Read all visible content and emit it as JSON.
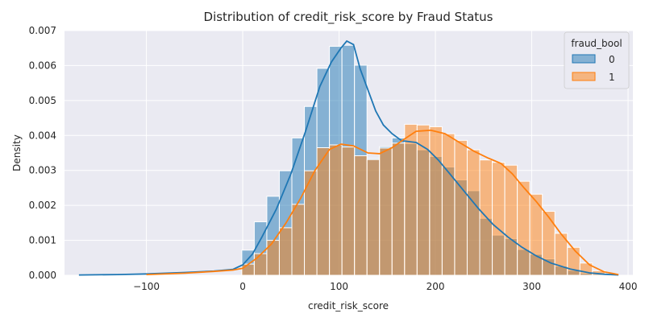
{
  "chart_data": {
    "type": "histogram",
    "title": "Distribution of credit_risk_score by Fraud Status",
    "xlabel": "credit_risk_score",
    "ylabel": "Density",
    "xlim": [
      -185,
      405
    ],
    "ylim": [
      0,
      0.007
    ],
    "xticks": [
      -100,
      0,
      100,
      200,
      300,
      400
    ],
    "xtick_labels": [
      "−100",
      "0",
      "100",
      "200",
      "300",
      "400"
    ],
    "yticks": [
      0,
      0.001,
      0.002,
      0.003,
      0.004,
      0.005,
      0.006,
      0.007
    ],
    "ytick_labels": [
      "0.000",
      "0.001",
      "0.002",
      "0.003",
      "0.004",
      "0.005",
      "0.006",
      "0.007"
    ],
    "grid": true,
    "background": "#eaeaf2",
    "legend": {
      "title": "fraud_bool",
      "placement": "top-right"
    },
    "bin_width": 13,
    "series": [
      {
        "name": "0",
        "color": "#1f77b4",
        "bins": [
          {
            "x0": -1,
            "y": 0.00072
          },
          {
            "x0": 12,
            "y": 0.00153
          },
          {
            "x0": 25,
            "y": 0.00226
          },
          {
            "x0": 38,
            "y": 0.00299
          },
          {
            "x0": 51,
            "y": 0.00393
          },
          {
            "x0": 64,
            "y": 0.00483
          },
          {
            "x0": 77,
            "y": 0.00592
          },
          {
            "x0": 90,
            "y": 0.00655
          },
          {
            "x0": 103,
            "y": 0.00658
          },
          {
            "x0": 116,
            "y": 0.00601
          },
          {
            "x0": 129,
            "y": 0.00334
          },
          {
            "x0": 142,
            "y": 0.00368
          },
          {
            "x0": 155,
            "y": 0.00393
          },
          {
            "x0": 168,
            "y": 0.00377
          },
          {
            "x0": 181,
            "y": 0.00359
          },
          {
            "x0": 194,
            "y": 0.0034
          },
          {
            "x0": 207,
            "y": 0.0031
          },
          {
            "x0": 220,
            "y": 0.00273
          },
          {
            "x0": 233,
            "y": 0.00242
          },
          {
            "x0": 246,
            "y": 0.00163
          },
          {
            "x0": 259,
            "y": 0.00115
          },
          {
            "x0": 272,
            "y": 0.00105
          },
          {
            "x0": 285,
            "y": 0.00074
          },
          {
            "x0": 298,
            "y": 0.0006
          },
          {
            "x0": 311,
            "y": 0.00047
          },
          {
            "x0": 324,
            "y": 0.00026
          },
          {
            "x0": 337,
            "y": 0.00014
          },
          {
            "x0": 350,
            "y": 6e-05
          },
          {
            "x0": 363,
            "y": 3e-05
          },
          {
            "x0": 376,
            "y": 1e-05
          }
        ],
        "kde": [
          [
            -170,
            1e-05
          ],
          [
            -130,
            2e-05
          ],
          [
            -100,
            4e-05
          ],
          [
            -60,
            8e-05
          ],
          [
            -30,
            0.00012
          ],
          [
            -10,
            0.00017
          ],
          [
            0,
            0.0003
          ],
          [
            10,
            0.0006
          ],
          [
            20,
            0.0011
          ],
          [
            35,
            0.0019
          ],
          [
            50,
            0.0029
          ],
          [
            65,
            0.0041
          ],
          [
            80,
            0.0054
          ],
          [
            92,
            0.0061
          ],
          [
            102,
            0.0065
          ],
          [
            108,
            0.0067
          ],
          [
            115,
            0.0066
          ],
          [
            122,
            0.0059
          ],
          [
            130,
            0.0053
          ],
          [
            138,
            0.0047
          ],
          [
            146,
            0.0043
          ],
          [
            155,
            0.00405
          ],
          [
            165,
            0.00385
          ],
          [
            180,
            0.0038
          ],
          [
            192,
            0.0036
          ],
          [
            203,
            0.0033
          ],
          [
            215,
            0.0029
          ],
          [
            230,
            0.0024
          ],
          [
            245,
            0.0019
          ],
          [
            260,
            0.00145
          ],
          [
            275,
            0.0011
          ],
          [
            290,
            0.0008
          ],
          [
            305,
            0.00055
          ],
          [
            320,
            0.00035
          ],
          [
            340,
            0.00018
          ],
          [
            360,
            7e-05
          ],
          [
            375,
            3e-05
          ],
          [
            390,
            1e-05
          ]
        ]
      },
      {
        "name": "1",
        "color": "#ff7f0e",
        "bins": [
          {
            "x0": -1,
            "y": 0.00032
          },
          {
            "x0": 12,
            "y": 0.00062
          },
          {
            "x0": 25,
            "y": 0.001
          },
          {
            "x0": 38,
            "y": 0.00136
          },
          {
            "x0": 51,
            "y": 0.00203
          },
          {
            "x0": 64,
            "y": 0.00299
          },
          {
            "x0": 77,
            "y": 0.00365
          },
          {
            "x0": 90,
            "y": 0.00373
          },
          {
            "x0": 103,
            "y": 0.00367
          },
          {
            "x0": 116,
            "y": 0.00342
          },
          {
            "x0": 129,
            "y": 0.00331
          },
          {
            "x0": 142,
            "y": 0.00364
          },
          {
            "x0": 155,
            "y": 0.00378
          },
          {
            "x0": 168,
            "y": 0.00432
          },
          {
            "x0": 181,
            "y": 0.0043
          },
          {
            "x0": 194,
            "y": 0.00425
          },
          {
            "x0": 207,
            "y": 0.00405
          },
          {
            "x0": 220,
            "y": 0.00386
          },
          {
            "x0": 233,
            "y": 0.00359
          },
          {
            "x0": 246,
            "y": 0.0033
          },
          {
            "x0": 259,
            "y": 0.00323
          },
          {
            "x0": 272,
            "y": 0.00315
          },
          {
            "x0": 285,
            "y": 0.00269
          },
          {
            "x0": 298,
            "y": 0.00232
          },
          {
            "x0": 311,
            "y": 0.00183
          },
          {
            "x0": 324,
            "y": 0.0012
          },
          {
            "x0": 337,
            "y": 0.0008
          },
          {
            "x0": 350,
            "y": 0.00035
          },
          {
            "x0": 363,
            "y": 0.00013
          },
          {
            "x0": 376,
            "y": 4e-05
          }
        ],
        "kde": [
          [
            -100,
            2e-05
          ],
          [
            -60,
            6e-05
          ],
          [
            -30,
            0.00011
          ],
          [
            -10,
            0.00015
          ],
          [
            0,
            0.0002
          ],
          [
            15,
            0.0005
          ],
          [
            30,
            0.0009
          ],
          [
            45,
            0.0015
          ],
          [
            60,
            0.0022
          ],
          [
            75,
            0.003
          ],
          [
            90,
            0.0036
          ],
          [
            102,
            0.00375
          ],
          [
            115,
            0.0037
          ],
          [
            130,
            0.0035
          ],
          [
            142,
            0.00348
          ],
          [
            155,
            0.00365
          ],
          [
            168,
            0.0039
          ],
          [
            180,
            0.00412
          ],
          [
            195,
            0.00415
          ],
          [
            210,
            0.00405
          ],
          [
            225,
            0.0038
          ],
          [
            240,
            0.00355
          ],
          [
            255,
            0.00335
          ],
          [
            268,
            0.0032
          ],
          [
            280,
            0.0029
          ],
          [
            292,
            0.0025
          ],
          [
            305,
            0.0021
          ],
          [
            318,
            0.00165
          ],
          [
            330,
            0.0012
          ],
          [
            345,
            0.0007
          ],
          [
            360,
            0.0003
          ],
          [
            375,
            0.0001
          ],
          [
            390,
            2e-05
          ]
        ]
      }
    ]
  }
}
